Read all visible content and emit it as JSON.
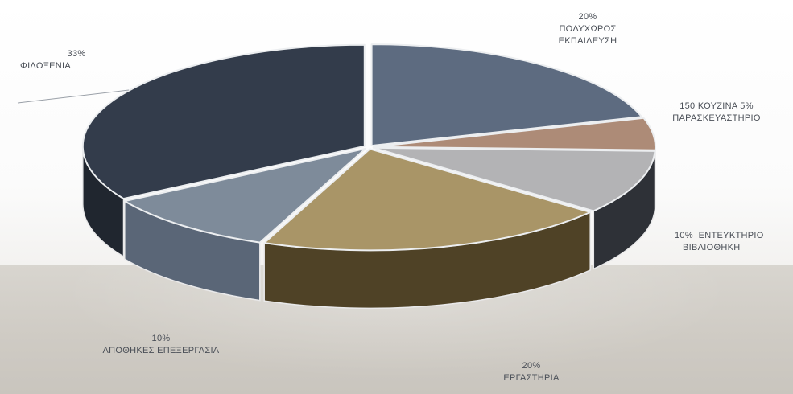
{
  "chart_data": {
    "type": "pie",
    "style": "3d-exploded",
    "legend": "none",
    "slices": [
      {
        "pct_label": "20%",
        "name_lines": [
          "ΠΟΛΥΧΩΡΟΣ",
          "ΕΚΠΑΙΔΕΥΣΗ"
        ],
        "value": 20,
        "top_color": "#5d6b80",
        "side_color": "#3e4858"
      },
      {
        "pct_label": "",
        "name_lines": [
          "150 ΚΟΥΖΙΝΑ 5%",
          "ΠΑΡΑΣΚΕΥΑΣΤΗΡΙΟ"
        ],
        "value": 5,
        "top_color": "#ad8b77",
        "side_color": "#6e5546"
      },
      {
        "pct_label": "10%",
        "name_lines": [
          "ΕΝΤΕΥΚΤΗΡΙΟ",
          "ΒΙΒΛΙΟΘΗΚΗ"
        ],
        "value": 10,
        "top_color": "#b3b3b5",
        "side_color": "#2e3137"
      },
      {
        "pct_label": "20%",
        "name_lines": [
          "ΕΡΓΑΣΤΗΡΙΑ"
        ],
        "value": 20,
        "top_color": "#a99567",
        "side_color": "#4f4226"
      },
      {
        "pct_label": "10%",
        "name_lines": [
          "ΑΠΟΘΗΚΕΣ ΕΠΕΞΕΡΓΑΣΙΑ"
        ],
        "value": 10,
        "top_color": "#7e8b9a",
        "side_color": "#5a6677"
      },
      {
        "pct_label": "33%",
        "name_lines": [
          "ΦΙΛΟΞΕΝΙΑ"
        ],
        "value": 33,
        "top_color": "#333c4b",
        "side_color": "#20262f"
      }
    ]
  }
}
